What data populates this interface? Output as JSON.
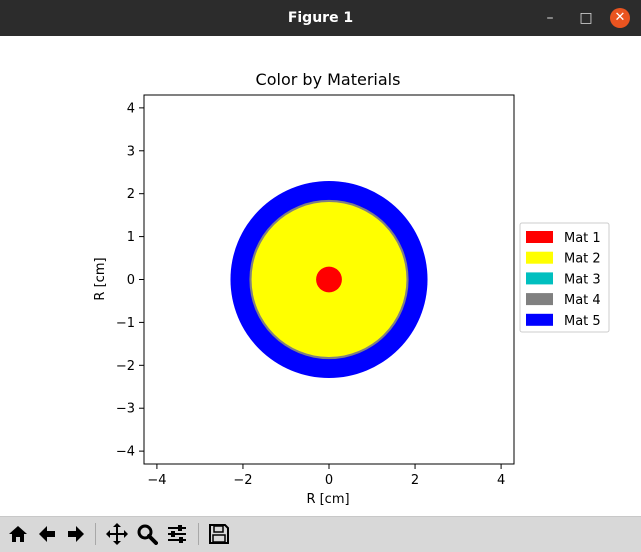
{
  "window": {
    "title": "Figure 1",
    "minimize_icon": "minimize-icon",
    "maximize_icon": "maximize-icon",
    "close_icon": "close-icon",
    "close_color": "#e95420"
  },
  "chart_data": {
    "type": "other",
    "title": "Color by Materials",
    "xlabel": "R [cm]",
    "ylabel": "R [cm]",
    "xlim": [
      -4.3,
      4.3
    ],
    "ylim": [
      -4.3,
      4.3
    ],
    "xticks": [
      -4,
      -2,
      0,
      2,
      4
    ],
    "yticks": [
      -4,
      -3,
      -2,
      -1,
      0,
      1,
      2,
      3,
      4
    ],
    "xtick_labels": [
      "−4",
      "−2",
      "0",
      "2",
      "4"
    ],
    "ytick_labels": [
      "−4",
      "−3",
      "−2",
      "−1",
      "0",
      "1",
      "2",
      "3",
      "4"
    ],
    "regions": [
      {
        "material": "Mat 5",
        "outer_radius": 2.29,
        "color": "#0000ff"
      },
      {
        "material": "Mat 4",
        "outer_radius": 1.85,
        "color": "#808080"
      },
      {
        "material": "Mat 2",
        "outer_radius": 1.8,
        "color": "#ffff00"
      },
      {
        "material": "Mat 1",
        "outer_radius": 0.3,
        "color": "#ff0000"
      }
    ],
    "legend": {
      "placement": "right",
      "entries": [
        {
          "label": "Mat 1",
          "color": "#ff0000"
        },
        {
          "label": "Mat 2",
          "color": "#ffff00"
        },
        {
          "label": "Mat 3",
          "color": "#00bfbf"
        },
        {
          "label": "Mat 4",
          "color": "#808080"
        },
        {
          "label": "Mat 5",
          "color": "#0000ff"
        }
      ]
    }
  },
  "toolbar": {
    "buttons": [
      {
        "name": "home-button",
        "icon": "home-icon"
      },
      {
        "name": "back-button",
        "icon": "back-arrow-icon"
      },
      {
        "name": "forward-button",
        "icon": "forward-arrow-icon"
      },
      {
        "name": "pan-button",
        "icon": "move-icon"
      },
      {
        "name": "zoom-button",
        "icon": "magnifier-icon"
      },
      {
        "name": "configure-subplots-button",
        "icon": "sliders-icon"
      },
      {
        "name": "save-button",
        "icon": "floppy-disk-icon"
      }
    ]
  }
}
